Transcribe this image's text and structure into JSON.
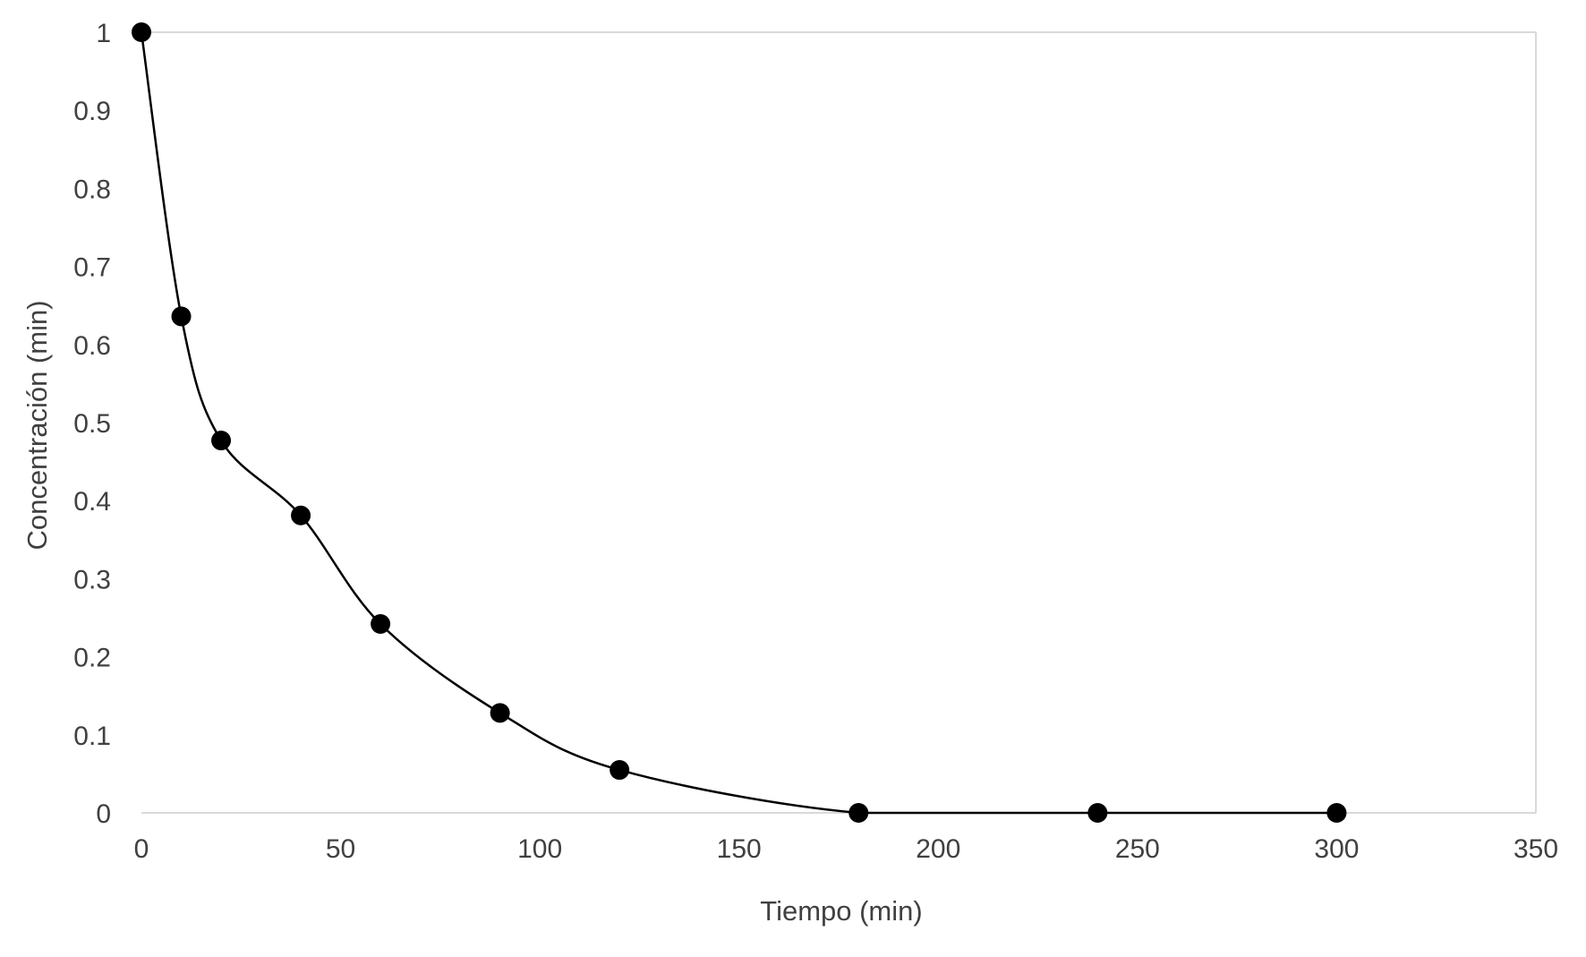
{
  "chart_data": {
    "type": "scatter",
    "title": "",
    "xlabel": "Tiempo (min)",
    "ylabel": "Concentración (min)",
    "xlim": [
      0,
      350
    ],
    "ylim": [
      0,
      1
    ],
    "xticks": [
      0,
      50,
      100,
      150,
      200,
      250,
      300,
      350
    ],
    "yticks": [
      0,
      0.1,
      0.2,
      0.3,
      0.4,
      0.5,
      0.6,
      0.7,
      0.8,
      0.9,
      1
    ],
    "xtick_labels": [
      "0",
      "50",
      "100",
      "150",
      "200",
      "250",
      "300",
      "350"
    ],
    "ytick_labels": [
      "0",
      "0.1",
      "0.2",
      "0.3",
      "0.4",
      "0.5",
      "0.6",
      "0.7",
      "0.8",
      "0.9",
      "1"
    ],
    "grid": "horizontal-top-and-right-border",
    "line_style": "smoothed",
    "legend": "none",
    "series": [
      {
        "x": [
          0,
          10,
          20,
          40,
          60,
          90,
          120,
          180,
          240,
          300
        ],
        "y": [
          1,
          0.636,
          0.477,
          0.381,
          0.242,
          0.128,
          0.055,
          0,
          0,
          0
        ],
        "color": "#000000"
      }
    ]
  }
}
